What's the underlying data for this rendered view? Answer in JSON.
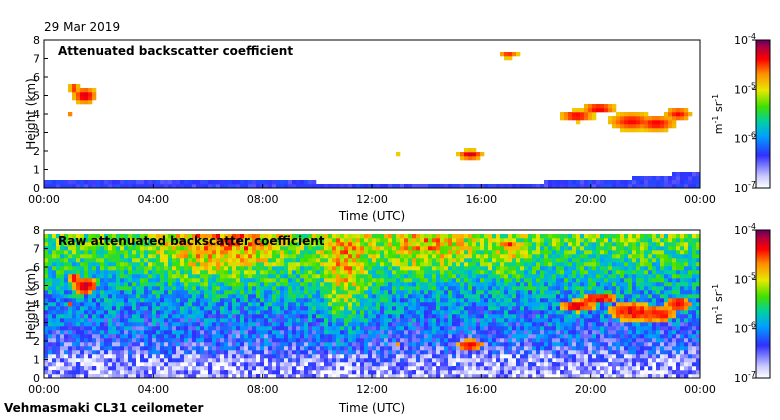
{
  "date_label": "29 Mar 2019",
  "footer_label": "Vehmasmaki CL31 ceilometer",
  "chart_data": [
    {
      "type": "heatmap",
      "title": "Attenuated backscatter coefficient",
      "xlabel": "Time (UTC)",
      "ylabel": "Height (km)",
      "xlim": [
        0,
        24
      ],
      "ylim": [
        0,
        8
      ],
      "x_tick_labels": [
        "00:00",
        "04:00",
        "08:00",
        "12:00",
        "16:00",
        "20:00",
        "00:00"
      ],
      "y_tick_labels": [
        "0",
        "1",
        "2",
        "3",
        "4",
        "5",
        "6",
        "7",
        "8"
      ],
      "colorbar": {
        "scale": "log",
        "range": [
          1e-07,
          0.0001
        ],
        "tick_labels": [
          "10^-4",
          "10^-5",
          "10^-6",
          "10^-7"
        ],
        "unit": "m^-1 sr^-1"
      }
    },
    {
      "type": "heatmap",
      "title": "Raw attenuated backscatter coefficient",
      "xlabel": "Time (UTC)",
      "ylabel": "Height (km)",
      "xlim": [
        0,
        24
      ],
      "ylim": [
        0,
        8
      ],
      "x_tick_labels": [
        "00:00",
        "04:00",
        "08:00",
        "12:00",
        "16:00",
        "20:00",
        "00:00"
      ],
      "y_tick_labels": [
        "0",
        "1",
        "2",
        "3",
        "4",
        "5",
        "6",
        "7",
        "8"
      ],
      "colorbar": {
        "scale": "log",
        "range": [
          1e-07,
          0.0001
        ],
        "tick_labels": [
          "10^-4",
          "10^-5",
          "10^-6",
          "10^-7"
        ],
        "unit": "m^-1 sr^-1"
      }
    }
  ]
}
